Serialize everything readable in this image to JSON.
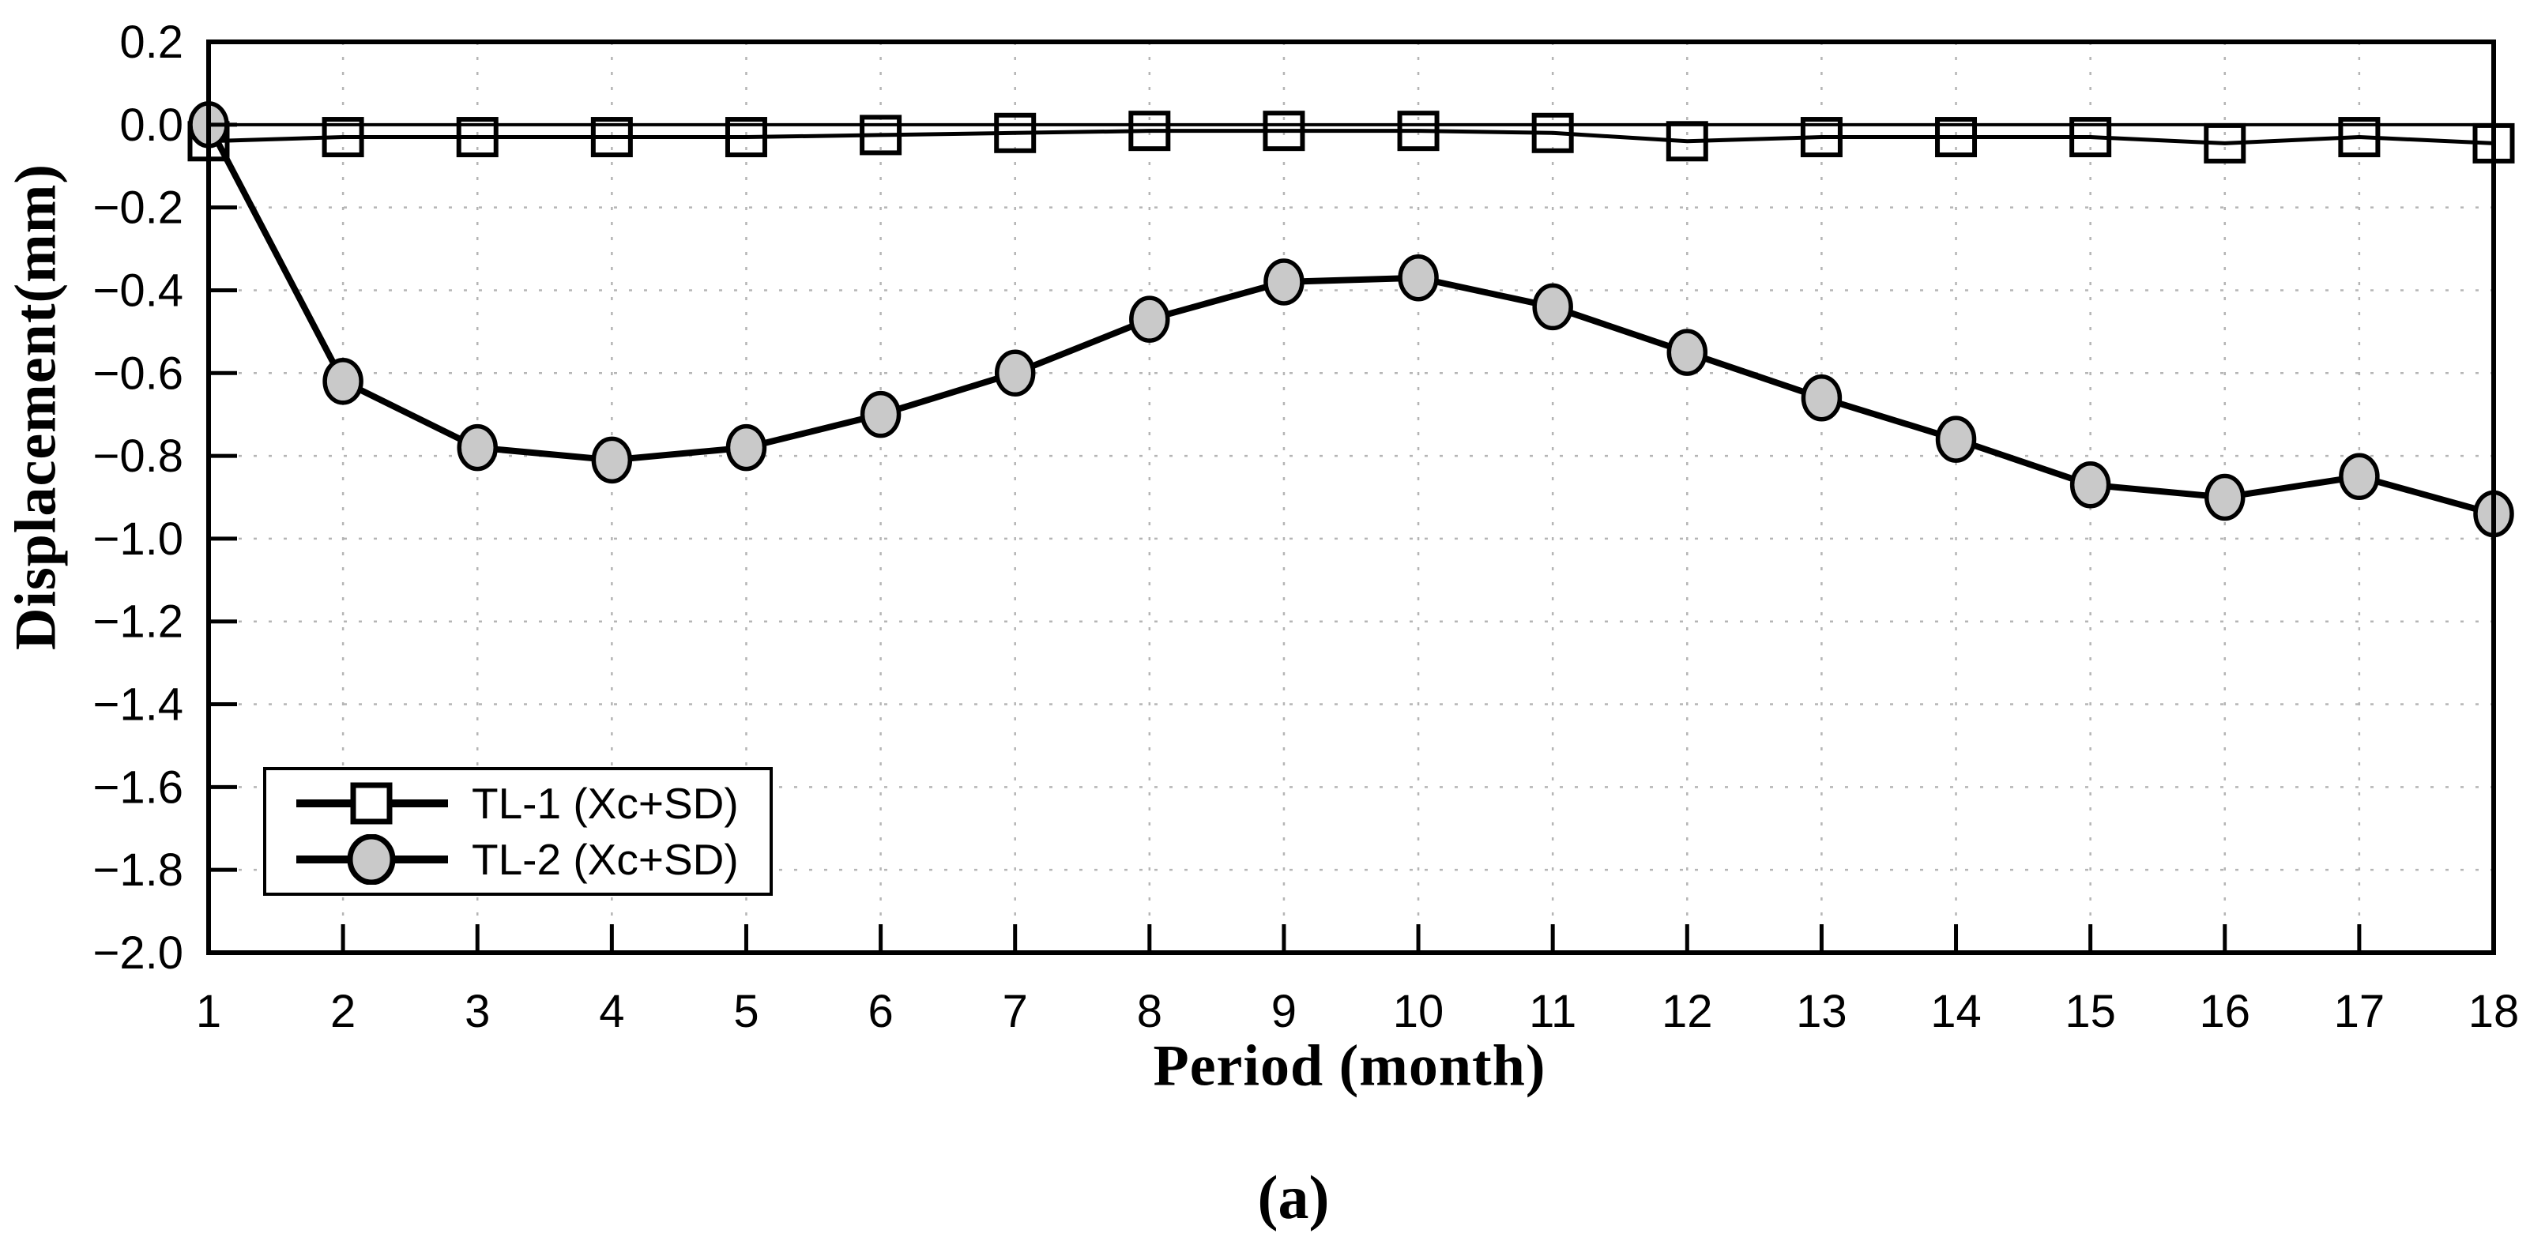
{
  "figure": {
    "caption": "(a)"
  },
  "chart_data": {
    "type": "line",
    "title": "",
    "xlabel": "Period (month)",
    "ylabel": "Displacement(mm)",
    "x": [
      1,
      2,
      3,
      4,
      5,
      6,
      7,
      8,
      9,
      10,
      11,
      12,
      13,
      14,
      15,
      16,
      17,
      18
    ],
    "xlim": [
      1,
      18
    ],
    "ylim": [
      -2.0,
      0.2
    ],
    "y_ticks": [
      0.2,
      0.0,
      -0.2,
      -0.4,
      -0.6,
      -0.8,
      -1.0,
      -1.2,
      -1.4,
      -1.6,
      -1.8,
      -2.0
    ],
    "grid": true,
    "gridline_color": "#b5b5b5",
    "axis_color": "#000000",
    "reference_line_y": 0.0,
    "legend_position": "lower-left",
    "series": [
      {
        "name": "TL-1 (Xc+SD)",
        "marker": "square",
        "marker_fill": "#ffffff",
        "line_color": "#000000",
        "values": [
          -0.04,
          -0.03,
          -0.03,
          -0.03,
          -0.03,
          -0.025,
          -0.02,
          -0.015,
          -0.015,
          -0.015,
          -0.02,
          -0.04,
          -0.03,
          -0.03,
          -0.03,
          -0.045,
          -0.03,
          -0.045
        ]
      },
      {
        "name": "TL-2 (Xc+SD)",
        "marker": "circle",
        "marker_fill": "#c9c9c9",
        "line_color": "#000000",
        "values": [
          0.0,
          -0.62,
          -0.78,
          -0.81,
          -0.78,
          -0.7,
          -0.6,
          -0.47,
          -0.38,
          -0.37,
          -0.44,
          -0.55,
          -0.66,
          -0.76,
          -0.87,
          -0.9,
          -0.85,
          -0.94
        ]
      }
    ]
  }
}
